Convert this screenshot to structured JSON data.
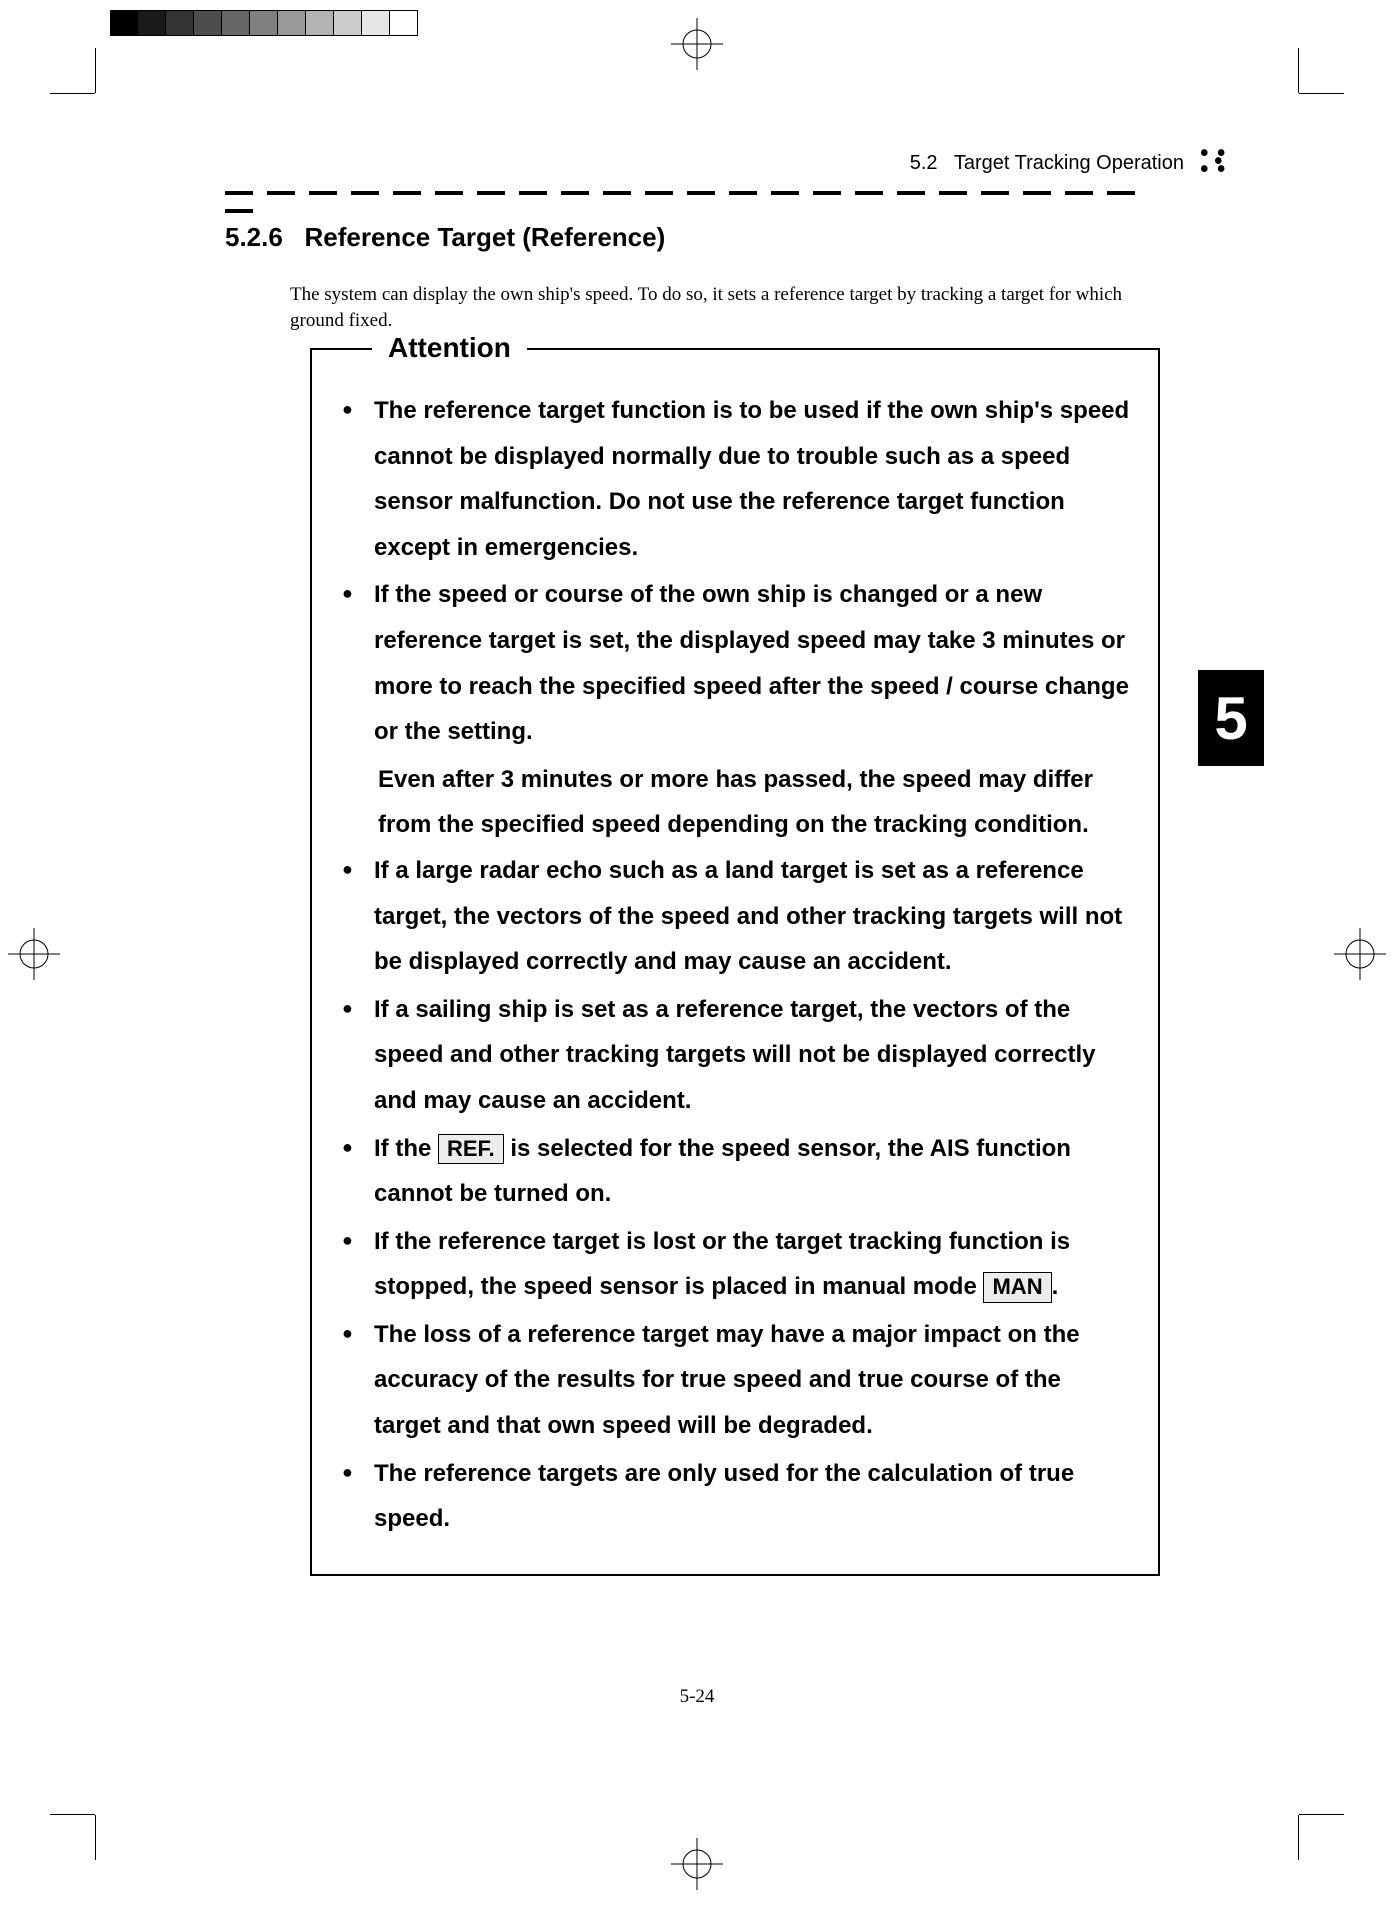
{
  "print_marks": {
    "grayscale_swatches": [
      "#000000",
      "#1a1a1a",
      "#333333",
      "#4d4d4d",
      "#666666",
      "#808080",
      "#999999",
      "#b3b3b3",
      "#cccccc",
      "#e6e6e6",
      "#ffffff"
    ]
  },
  "running_header": {
    "section_number": "5.2",
    "section_title": "Target Tracking Operation"
  },
  "chapter_tab": "5",
  "heading": {
    "number": "5.2.6",
    "title": "Reference Target (Reference)"
  },
  "intro": "The system can display the own ship's speed.   To do so, it sets a reference target by tracking a target for which ground fixed.",
  "attention": {
    "label": "Attention",
    "items": [
      {
        "text": "The reference target function is to be used if the own ship's speed cannot be displayed normally due to trouble such as a speed sensor malfunction.   Do not use the reference target function except in emergencies."
      },
      {
        "text": "If the speed or course of the own ship is changed or a new reference target is set, the displayed speed may take 3 minutes or more to reach the specified speed after the speed / course change or the setting.",
        "cont": "Even after 3 minutes or more has passed, the speed may differ from the specified speed depending on the tracking condition."
      },
      {
        "text": "If a large radar echo such as a land target is set as a reference target, the vectors of the speed and other tracking targets will not be displayed correctly and may cause an accident."
      },
      {
        "text": "If a sailing ship is set as a reference target, the vectors of the speed and other tracking targets will not be displayed correctly and may cause an accident."
      },
      {
        "pre": "If the ",
        "key": "REF.",
        "post": " is selected for the speed sensor, the AIS function cannot be turned on."
      },
      {
        "pre": "If the reference target is lost or the target tracking function is stopped, the speed sensor is placed in manual mode ",
        "key": "MAN",
        "post": "."
      },
      {
        "text": "The loss of a reference target may have a major impact on the accuracy of the results for true speed and true course of the target and that own speed will be degraded."
      },
      {
        "text": "The reference targets are only used for the calculation of true speed."
      }
    ]
  },
  "page_number": "5-24"
}
